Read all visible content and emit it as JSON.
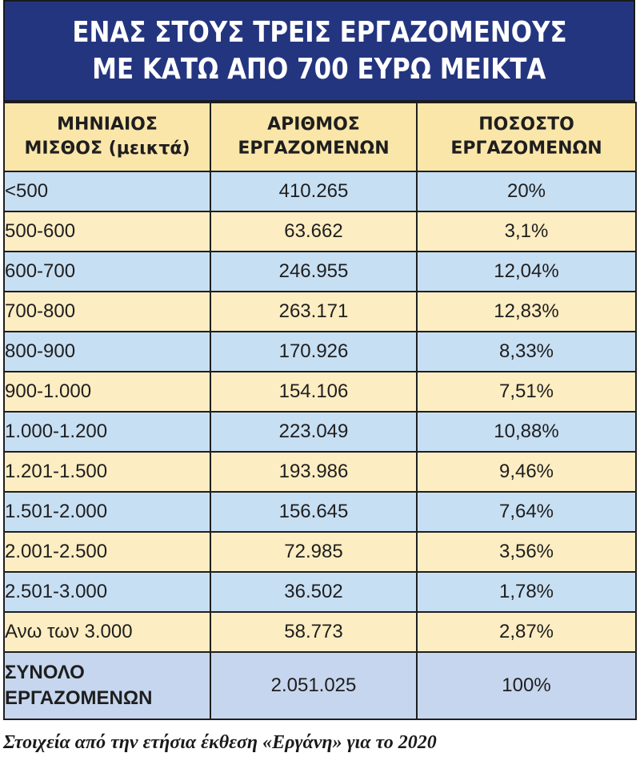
{
  "chart_data": {
    "type": "table",
    "title": [
      "ΕΝΑΣ ΣΤΟΥΣ ΤΡΕΙΣ ΕΡΓΑΖΟΜΕΝΟΥΣ",
      "ΜΕ ΚΑΤΩ ΑΠΟ 700 ΕΥΡΩ ΜΕΙΚΤΑ"
    ],
    "columns": [
      [
        "ΜΗΝΙΑΙΟΣ",
        "ΜΙΣΘΟΣ (μεικτά)"
      ],
      [
        "ΑΡΙΘΜΟΣ",
        "ΕΡΓΑΖΟΜΕΝΩΝ"
      ],
      [
        "ΠΟΣΟΣΤΟ",
        "ΕΡΓΑΖΟΜΕΝΩΝ"
      ]
    ],
    "rows": [
      [
        "<500",
        "410.265",
        "20%"
      ],
      [
        "500-600",
        "63.662",
        "3,1%"
      ],
      [
        "600-700",
        "246.955",
        "12,04%"
      ],
      [
        "700-800",
        "263.171",
        "12,83%"
      ],
      [
        "800-900",
        "170.926",
        "8,33%"
      ],
      [
        "900-1.000",
        "154.106",
        "7,51%"
      ],
      [
        "1.000-1.200",
        "223.049",
        "10,88%"
      ],
      [
        "1.201-1.500",
        "193.986",
        "9,46%"
      ],
      [
        "1.501-2.000",
        "156.645",
        "7,64%"
      ],
      [
        "2.001-2.500",
        "72.985",
        "3,56%"
      ],
      [
        "2.501-3.000",
        "36.502",
        "1,78%"
      ],
      [
        "Ανω των 3.000",
        "58.773",
        "2,87%"
      ]
    ],
    "total": {
      "label": [
        "ΣΥΝΟΛΟ",
        "ΕΡΓΑΖΟΜΕΝΩΝ"
      ],
      "count": "2.051.025",
      "percent": "100%"
    },
    "source": "Στοιχεία από την ετήσια έκθεση «Εργάνη» για το 2020"
  },
  "colors": {
    "title_bg": "#24357f",
    "header_bg": "#fbe6aa",
    "row_blue": "#c7dff3",
    "row_yellow": "#fdedc2",
    "total_bg": "#c6d6ee"
  }
}
